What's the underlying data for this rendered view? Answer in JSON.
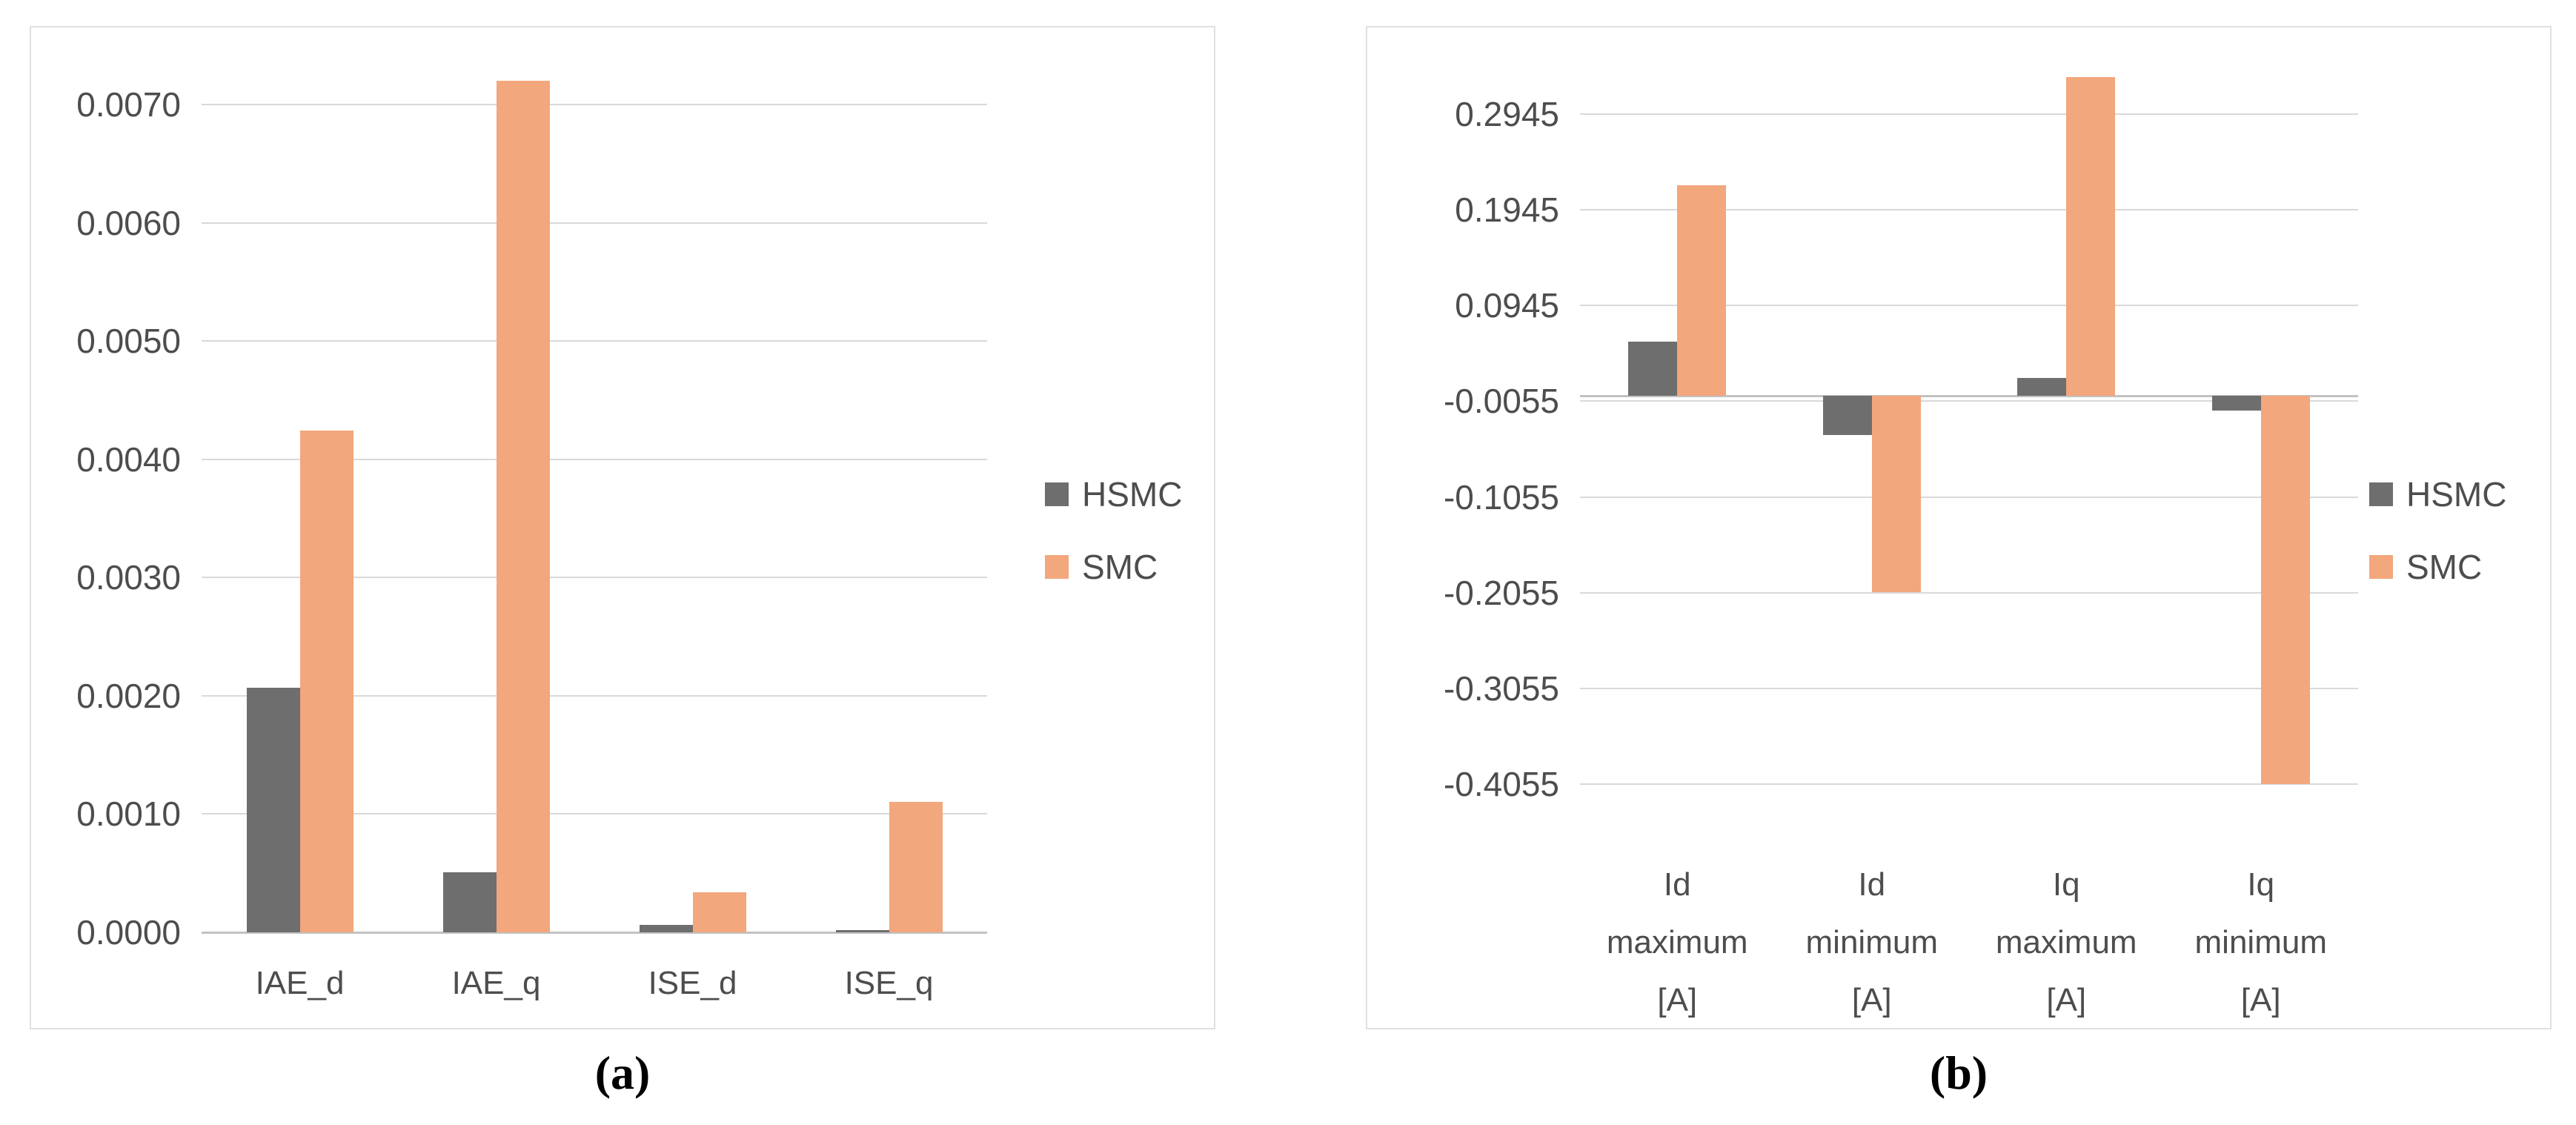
{
  "figure": {
    "caption_a": "(a)",
    "caption_b": "(b)"
  },
  "colors": {
    "hsmc": "#6E6E6E",
    "smc": "#F2A77C",
    "gridline": "#D9D9D9",
    "axis_line": "#C2C2C2",
    "tick_text": "#4D4D4D",
    "panel_border": "#E0E0E0"
  },
  "legend": {
    "items": [
      {
        "label": "HSMC",
        "color": "#6E6E6E"
      },
      {
        "label": "SMC",
        "color": "#F2A77C"
      }
    ]
  },
  "chart_data": [
    {
      "id": "a",
      "type": "bar",
      "title": "",
      "xlabel": "",
      "ylabel": "",
      "categories": [
        "IAE_d",
        "IAE_q",
        "ISE_d",
        "ISE_q"
      ],
      "series": [
        {
          "name": "HSMC",
          "color": "#6E6E6E",
          "values": [
            0.00207,
            0.00051,
            6e-05,
            2e-05
          ]
        },
        {
          "name": "SMC",
          "color": "#F2A77C",
          "values": [
            0.00424,
            0.0072,
            0.00034,
            0.0011
          ]
        }
      ],
      "yticks": [
        {
          "label": "0.0070",
          "value": 0.007
        },
        {
          "label": "0.0060",
          "value": 0.006
        },
        {
          "label": "0.0050",
          "value": 0.005
        },
        {
          "label": "0.0040",
          "value": 0.004
        },
        {
          "label": "0.0030",
          "value": 0.003
        },
        {
          "label": "0.0020",
          "value": 0.002
        },
        {
          "label": "0.0010",
          "value": 0.001
        },
        {
          "label": "0.0000",
          "value": 0.0
        }
      ],
      "ylim": [
        0,
        0.007
      ],
      "grid": true,
      "legend_position": "right"
    },
    {
      "id": "b",
      "type": "bar",
      "title": "",
      "xlabel": "",
      "ylabel": "",
      "categories": [
        "Id maximum [A]",
        "Id minimum [A]",
        "Iq maximum [A]",
        "Iq minimum [A]"
      ],
      "category_lines": [
        [
          "Id",
          "maximum",
          "[A]"
        ],
        [
          "Id",
          "minimum",
          "[A]"
        ],
        [
          "Iq",
          "maximum",
          "[A]"
        ],
        [
          "Iq",
          "minimum",
          "[A]"
        ]
      ],
      "series": [
        {
          "name": "HSMC",
          "color": "#6E6E6E",
          "values": [
            0.057,
            -0.041,
            0.019,
            -0.015
          ]
        },
        {
          "name": "SMC",
          "color": "#F2A77C",
          "values": [
            0.22,
            -0.205,
            0.333,
            -0.4055
          ]
        }
      ],
      "yticks": [
        {
          "label": "0.2945",
          "value": 0.2945
        },
        {
          "label": "0.1945",
          "value": 0.1945
        },
        {
          "label": "0.0945",
          "value": 0.0945
        },
        {
          "label": "-0.0055",
          "value": -0.0055
        },
        {
          "label": "-0.1055",
          "value": -0.1055
        },
        {
          "label": "-0.2055",
          "value": -0.2055
        },
        {
          "label": "-0.3055",
          "value": -0.3055
        },
        {
          "label": "-0.4055",
          "value": -0.4055
        }
      ],
      "ylim": [
        -0.4055,
        0.2945
      ],
      "grid": true,
      "legend_position": "right"
    }
  ]
}
